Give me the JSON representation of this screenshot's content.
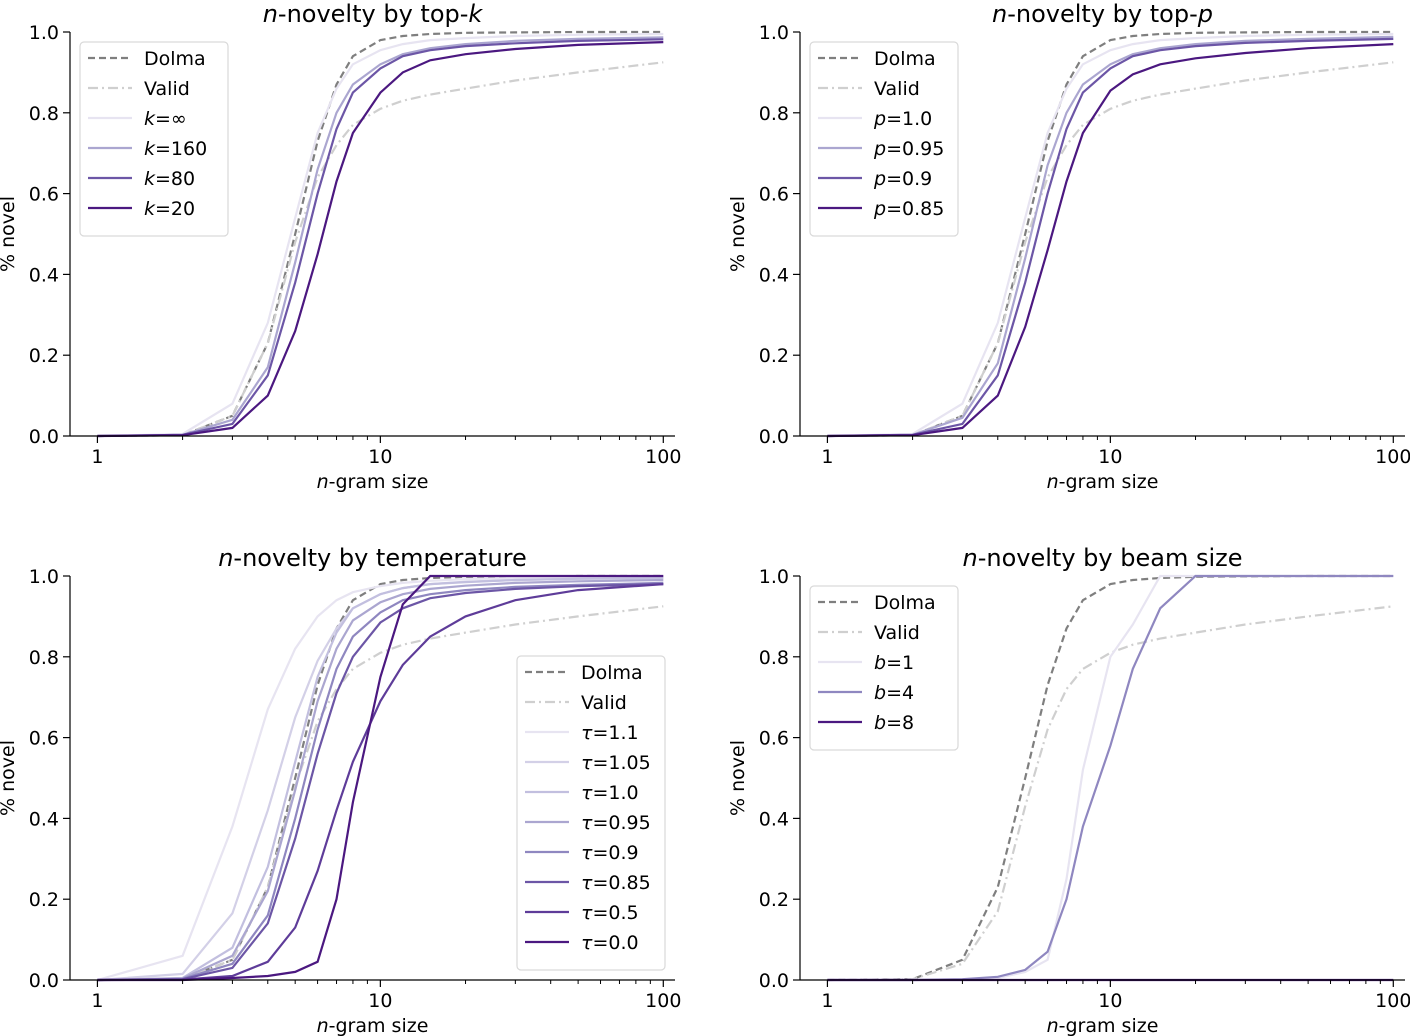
{
  "colors": {
    "dolma": "#7f7f7f",
    "valid": "#cfcfcf",
    "purples": [
      "#e7e4f1",
      "#d3d0e7",
      "#c2bfdf",
      "#aba6d0",
      "#8f87c0",
      "#6c56a6",
      "#5e3c99",
      "#4b1880"
    ]
  },
  "chart_data": [
    {
      "type": "line",
      "title_italic": "n",
      "title_text": "-novelty by top-",
      "title_suffix_italic": "k",
      "xlabel_italic": "n",
      "xlabel_text": "-gram size",
      "ylabel": "% novel",
      "xscale": "log",
      "xlim": [
        0.8,
        110
      ],
      "ylim": [
        0,
        1.0
      ],
      "xticks": [
        1,
        10,
        100
      ],
      "xtick_labels": [
        "1",
        "10",
        "100"
      ],
      "yticks": [
        0.0,
        0.2,
        0.4,
        0.6,
        0.8,
        1.0
      ],
      "ytick_labels": [
        "0.0",
        "0.2",
        "0.4",
        "0.6",
        "0.8",
        "1.0"
      ],
      "legend_position": "upper-left",
      "x": [
        1,
        2,
        3,
        4,
        5,
        6,
        7,
        8,
        10,
        12,
        15,
        20,
        30,
        50,
        100
      ],
      "series": [
        {
          "sym": "",
          "val": "Dolma",
          "style": "dashed",
          "color": "#7f7f7f",
          "values": [
            0,
            0.002,
            0.05,
            0.23,
            0.5,
            0.73,
            0.87,
            0.94,
            0.98,
            0.99,
            0.995,
            0.998,
            0.999,
            1.0,
            1.0
          ]
        },
        {
          "sym": "",
          "val": "Valid",
          "style": "dashdot",
          "color": "#cfcfcf",
          "values": [
            0,
            0.002,
            0.05,
            0.23,
            0.48,
            0.64,
            0.72,
            0.77,
            0.81,
            0.83,
            0.845,
            0.86,
            0.88,
            0.9,
            0.925
          ]
        },
        {
          "sym": "k",
          "val": "=∞",
          "style": "solid",
          "color": "#e7e4f1",
          "values": [
            0,
            0.005,
            0.08,
            0.28,
            0.54,
            0.75,
            0.86,
            0.92,
            0.955,
            0.97,
            0.98,
            0.985,
            0.99,
            0.993,
            0.995
          ]
        },
        {
          "sym": "k",
          "val": "=160",
          "style": "solid",
          "color": "#aba6d0",
          "values": [
            0,
            0.003,
            0.04,
            0.17,
            0.43,
            0.66,
            0.8,
            0.87,
            0.92,
            0.945,
            0.96,
            0.97,
            0.978,
            0.983,
            0.987
          ]
        },
        {
          "sym": "k",
          "val": "=80",
          "style": "solid",
          "color": "#6c56a6",
          "values": [
            0,
            0.003,
            0.03,
            0.15,
            0.38,
            0.6,
            0.76,
            0.85,
            0.91,
            0.94,
            0.955,
            0.965,
            0.972,
            0.978,
            0.982
          ]
        },
        {
          "sym": "k",
          "val": "=20",
          "style": "solid",
          "color": "#4b1880",
          "values": [
            0,
            0.002,
            0.02,
            0.1,
            0.26,
            0.45,
            0.63,
            0.75,
            0.85,
            0.9,
            0.93,
            0.945,
            0.958,
            0.968,
            0.975
          ]
        }
      ]
    },
    {
      "type": "line",
      "title_italic": "n",
      "title_text": "-novelty by top-",
      "title_suffix_italic": "p",
      "xlabel_italic": "n",
      "xlabel_text": "-gram size",
      "ylabel": "% novel",
      "xscale": "log",
      "xlim": [
        0.8,
        110
      ],
      "ylim": [
        0,
        1.0
      ],
      "xticks": [
        1,
        10,
        100
      ],
      "xtick_labels": [
        "1",
        "10",
        "100"
      ],
      "yticks": [
        0.0,
        0.2,
        0.4,
        0.6,
        0.8,
        1.0
      ],
      "ytick_labels": [
        "0.0",
        "0.2",
        "0.4",
        "0.6",
        "0.8",
        "1.0"
      ],
      "legend_position": "upper-left",
      "x": [
        1,
        2,
        3,
        4,
        5,
        6,
        7,
        8,
        10,
        12,
        15,
        20,
        30,
        50,
        100
      ],
      "series": [
        {
          "sym": "",
          "val": "Dolma",
          "style": "dashed",
          "color": "#7f7f7f",
          "values": [
            0,
            0.002,
            0.05,
            0.23,
            0.5,
            0.73,
            0.87,
            0.94,
            0.98,
            0.99,
            0.995,
            0.998,
            0.999,
            1.0,
            1.0
          ]
        },
        {
          "sym": "",
          "val": "Valid",
          "style": "dashdot",
          "color": "#cfcfcf",
          "values": [
            0,
            0.002,
            0.05,
            0.23,
            0.48,
            0.64,
            0.72,
            0.77,
            0.81,
            0.83,
            0.845,
            0.86,
            0.88,
            0.9,
            0.925
          ]
        },
        {
          "sym": "p",
          "val": "=1.0",
          "style": "solid",
          "color": "#e7e4f1",
          "values": [
            0,
            0.005,
            0.08,
            0.28,
            0.54,
            0.75,
            0.86,
            0.92,
            0.955,
            0.97,
            0.98,
            0.985,
            0.99,
            0.993,
            0.995
          ]
        },
        {
          "sym": "p",
          "val": "=0.95",
          "style": "solid",
          "color": "#aba6d0",
          "values": [
            0,
            0.003,
            0.045,
            0.18,
            0.44,
            0.67,
            0.8,
            0.87,
            0.92,
            0.945,
            0.96,
            0.97,
            0.978,
            0.983,
            0.988
          ]
        },
        {
          "sym": "p",
          "val": "=0.9",
          "style": "solid",
          "color": "#6c56a6",
          "values": [
            0,
            0.003,
            0.03,
            0.15,
            0.38,
            0.6,
            0.76,
            0.85,
            0.91,
            0.94,
            0.955,
            0.965,
            0.973,
            0.978,
            0.983
          ]
        },
        {
          "sym": "p",
          "val": "=0.85",
          "style": "solid",
          "color": "#4b1880",
          "values": [
            0,
            0.002,
            0.02,
            0.1,
            0.27,
            0.46,
            0.63,
            0.75,
            0.855,
            0.895,
            0.92,
            0.935,
            0.948,
            0.96,
            0.97
          ]
        }
      ]
    },
    {
      "type": "line",
      "title_italic": "n",
      "title_text": "-novelty by temperature",
      "title_suffix_italic": "",
      "xlabel_italic": "n",
      "xlabel_text": "-gram size",
      "ylabel": "% novel",
      "xscale": "log",
      "xlim": [
        0.8,
        110
      ],
      "ylim": [
        0,
        1.0
      ],
      "xticks": [
        1,
        10,
        100
      ],
      "xtick_labels": [
        "1",
        "10",
        "100"
      ],
      "yticks": [
        0.0,
        0.2,
        0.4,
        0.6,
        0.8,
        1.0
      ],
      "ytick_labels": [
        "0.0",
        "0.2",
        "0.4",
        "0.6",
        "0.8",
        "1.0"
      ],
      "legend_position": "lower-right",
      "x": [
        1,
        2,
        3,
        4,
        5,
        6,
        7,
        8,
        10,
        12,
        15,
        20,
        30,
        50,
        100
      ],
      "series": [
        {
          "sym": "",
          "val": "Dolma",
          "style": "dashed",
          "color": "#7f7f7f",
          "values": [
            0,
            0.002,
            0.05,
            0.23,
            0.5,
            0.73,
            0.87,
            0.94,
            0.98,
            0.99,
            0.995,
            0.998,
            0.999,
            1.0,
            1.0
          ]
        },
        {
          "sym": "",
          "val": "Valid",
          "style": "dashdot",
          "color": "#cfcfcf",
          "values": [
            0,
            0.002,
            0.05,
            0.23,
            0.48,
            0.64,
            0.72,
            0.77,
            0.81,
            0.83,
            0.845,
            0.86,
            0.88,
            0.9,
            0.925
          ]
        },
        {
          "sym": "τ",
          "val": "=1.1",
          "style": "solid",
          "color": "#e7e4f1",
          "values": [
            0,
            0.06,
            0.38,
            0.67,
            0.82,
            0.9,
            0.94,
            0.96,
            0.975,
            0.983,
            0.988,
            0.992,
            0.995,
            0.997,
            0.998
          ]
        },
        {
          "sym": "τ",
          "val": "=1.05",
          "style": "solid",
          "color": "#d3d0e7",
          "values": [
            0,
            0.015,
            0.165,
            0.42,
            0.65,
            0.79,
            0.87,
            0.92,
            0.955,
            0.97,
            0.98,
            0.986,
            0.99,
            0.993,
            0.995
          ]
        },
        {
          "sym": "τ",
          "val": "=1.0",
          "style": "solid",
          "color": "#c2bfdf",
          "values": [
            0,
            0.005,
            0.08,
            0.28,
            0.54,
            0.75,
            0.86,
            0.92,
            0.955,
            0.97,
            0.98,
            0.985,
            0.99,
            0.993,
            0.995
          ]
        },
        {
          "sym": "τ",
          "val": "=0.95",
          "style": "solid",
          "color": "#aba6d0",
          "values": [
            0,
            0.004,
            0.06,
            0.22,
            0.47,
            0.69,
            0.82,
            0.89,
            0.935,
            0.955,
            0.968,
            0.976,
            0.983,
            0.987,
            0.99
          ]
        },
        {
          "sym": "τ",
          "val": "=0.9",
          "style": "solid",
          "color": "#8f87c0",
          "values": [
            0,
            0.003,
            0.04,
            0.16,
            0.4,
            0.62,
            0.77,
            0.85,
            0.91,
            0.94,
            0.955,
            0.965,
            0.973,
            0.978,
            0.983
          ]
        },
        {
          "sym": "τ",
          "val": "=0.85",
          "style": "solid",
          "color": "#6c56a6",
          "values": [
            0,
            0.002,
            0.03,
            0.14,
            0.35,
            0.56,
            0.71,
            0.8,
            0.885,
            0.92,
            0.945,
            0.958,
            0.968,
            0.975,
            0.98
          ]
        },
        {
          "sym": "τ",
          "val": "=0.5",
          "style": "solid",
          "color": "#5e3c99",
          "values": [
            0,
            0.001,
            0.01,
            0.045,
            0.13,
            0.27,
            0.42,
            0.54,
            0.69,
            0.78,
            0.85,
            0.9,
            0.94,
            0.965,
            0.98
          ]
        },
        {
          "sym": "τ",
          "val": "=0.0",
          "style": "solid",
          "color": "#4b1880",
          "values": [
            0,
            0.0,
            0.005,
            0.01,
            0.02,
            0.045,
            0.2,
            0.44,
            0.75,
            0.93,
            1.0,
            1.0,
            1.0,
            1.0,
            1.0
          ]
        }
      ]
    },
    {
      "type": "line",
      "title_italic": "n",
      "title_text": "-novelty by beam size",
      "title_suffix_italic": "",
      "xlabel_italic": "n",
      "xlabel_text": "-gram size",
      "ylabel": "% novel",
      "xscale": "log",
      "xlim": [
        0.8,
        110
      ],
      "ylim": [
        0,
        1.0
      ],
      "xticks": [
        1,
        10,
        100
      ],
      "xtick_labels": [
        "1",
        "10",
        "100"
      ],
      "yticks": [
        0.0,
        0.2,
        0.4,
        0.6,
        0.8,
        1.0
      ],
      "ytick_labels": [
        "0.0",
        "0.2",
        "0.4",
        "0.6",
        "0.8",
        "1.0"
      ],
      "legend_position": "upper-left",
      "x": [
        1,
        2,
        3,
        4,
        5,
        6,
        7,
        8,
        10,
        12,
        15,
        20,
        30,
        50,
        100
      ],
      "series": [
        {
          "sym": "",
          "val": "Dolma",
          "style": "dashed",
          "color": "#7f7f7f",
          "values": [
            0,
            0.002,
            0.05,
            0.23,
            0.5,
            0.73,
            0.87,
            0.94,
            0.98,
            0.99,
            0.995,
            0.998,
            0.999,
            1.0,
            1.0
          ]
        },
        {
          "sym": "",
          "val": "Valid",
          "style": "dashdot",
          "color": "#cfcfcf",
          "values": [
            0,
            0.002,
            0.04,
            0.17,
            0.43,
            0.62,
            0.72,
            0.77,
            0.81,
            0.83,
            0.845,
            0.86,
            0.88,
            0.9,
            0.925
          ]
        },
        {
          "sym": "b",
          "val": "=1",
          "style": "solid",
          "color": "#e7e4f1",
          "values": [
            0,
            0.0,
            0.0,
            0.005,
            0.02,
            0.05,
            0.25,
            0.52,
            0.8,
            0.88,
            1.0,
            1.0,
            1.0,
            1.0,
            1.0
          ]
        },
        {
          "sym": "b",
          "val": "=4",
          "style": "solid",
          "color": "#8f87c0",
          "values": [
            0,
            0.0,
            0.002,
            0.008,
            0.025,
            0.07,
            0.2,
            0.38,
            0.58,
            0.77,
            0.92,
            1.0,
            1.0,
            1.0,
            1.0
          ]
        },
        {
          "sym": "b",
          "val": "=8",
          "style": "solid",
          "color": "#4b1880",
          "values": [
            0,
            0.0,
            0.0,
            0.0,
            0.0,
            0.0,
            0.0,
            0.0,
            0.0,
            0.0,
            0.0,
            0.0,
            0.0,
            0.0,
            0.0
          ]
        }
      ]
    }
  ]
}
